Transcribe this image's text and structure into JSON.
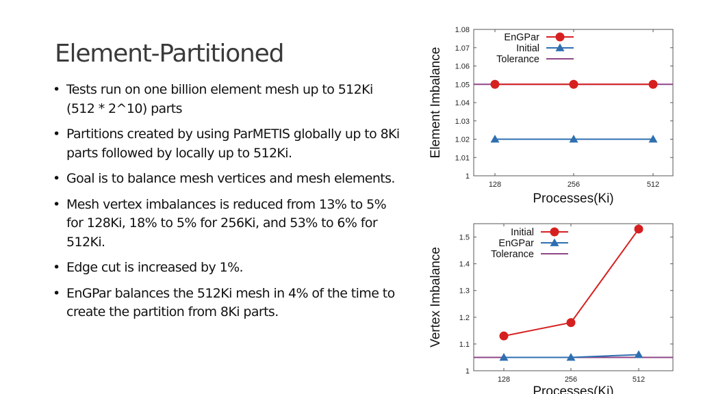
{
  "slide": {
    "title": "Element-Partitioned",
    "bullets": [
      "Tests run on one billion element mesh up to 512Ki (512 * 2^10) parts",
      "Partitions created by using ParMETIS globally up to 8Ki parts followed by locally up to 512Ki.",
      "Goal is to balance mesh vertices and mesh elements.",
      "Mesh vertex imbalances is reduced from 13% to 5% for 128Ki, 18% to 5% for 256Ki, and 53% to 6% for 512Ki.",
      "Edge cut is increased by 1%.",
      "EnGPar balances the 512Ki mesh in 4% of the time to create the partition from 8Ki parts."
    ]
  },
  "colors": {
    "red": "#d62020",
    "red_line": "#c03030",
    "blue": "#2e6fb0",
    "tolerance": "#8e4585"
  },
  "chart_data": [
    {
      "type": "line",
      "xlabel": "Processes(Ki)",
      "ylabel": "Element Imbalance",
      "categories": [
        "128",
        "256",
        "512"
      ],
      "ylim": [
        1,
        1.08
      ],
      "yticks": [
        "1",
        "1.01",
        "1.02",
        "1.03",
        "1.04",
        "1.05",
        "1.06",
        "1.07",
        "1.08"
      ],
      "grid": false,
      "legend_position": "top-right",
      "series": [
        {
          "name": "EnGPar",
          "values": [
            1.05,
            1.05,
            1.05
          ],
          "marker": "circle",
          "color": "#d62020"
        },
        {
          "name": "Initial",
          "values": [
            1.02,
            1.02,
            1.02
          ],
          "marker": "triangle",
          "color": "#2e6fb0"
        },
        {
          "name": "Tolerance",
          "values": [
            1.05,
            1.05,
            1.05
          ],
          "marker": "none",
          "color": "#8e4585",
          "span": "full"
        }
      ]
    },
    {
      "type": "line",
      "xlabel": "Processes(Ki)",
      "ylabel": "Vertex Imbalance",
      "categories": [
        "128",
        "256",
        "512"
      ],
      "ylim": [
        1,
        1.55
      ],
      "yticks": [
        "1",
        "1.1",
        "1.2",
        "1.3",
        "1.4",
        "1.5"
      ],
      "grid": false,
      "legend_position": "top-right",
      "series": [
        {
          "name": "Initial",
          "values": [
            1.13,
            1.18,
            1.53
          ],
          "marker": "circle",
          "color": "#d62020"
        },
        {
          "name": "EnGPar",
          "values": [
            1.05,
            1.05,
            1.06
          ],
          "marker": "triangle",
          "color": "#2e6fb0"
        },
        {
          "name": "Tolerance",
          "values": [
            1.05,
            1.05,
            1.05
          ],
          "marker": "none",
          "color": "#8e4585",
          "span": "full"
        }
      ]
    }
  ]
}
